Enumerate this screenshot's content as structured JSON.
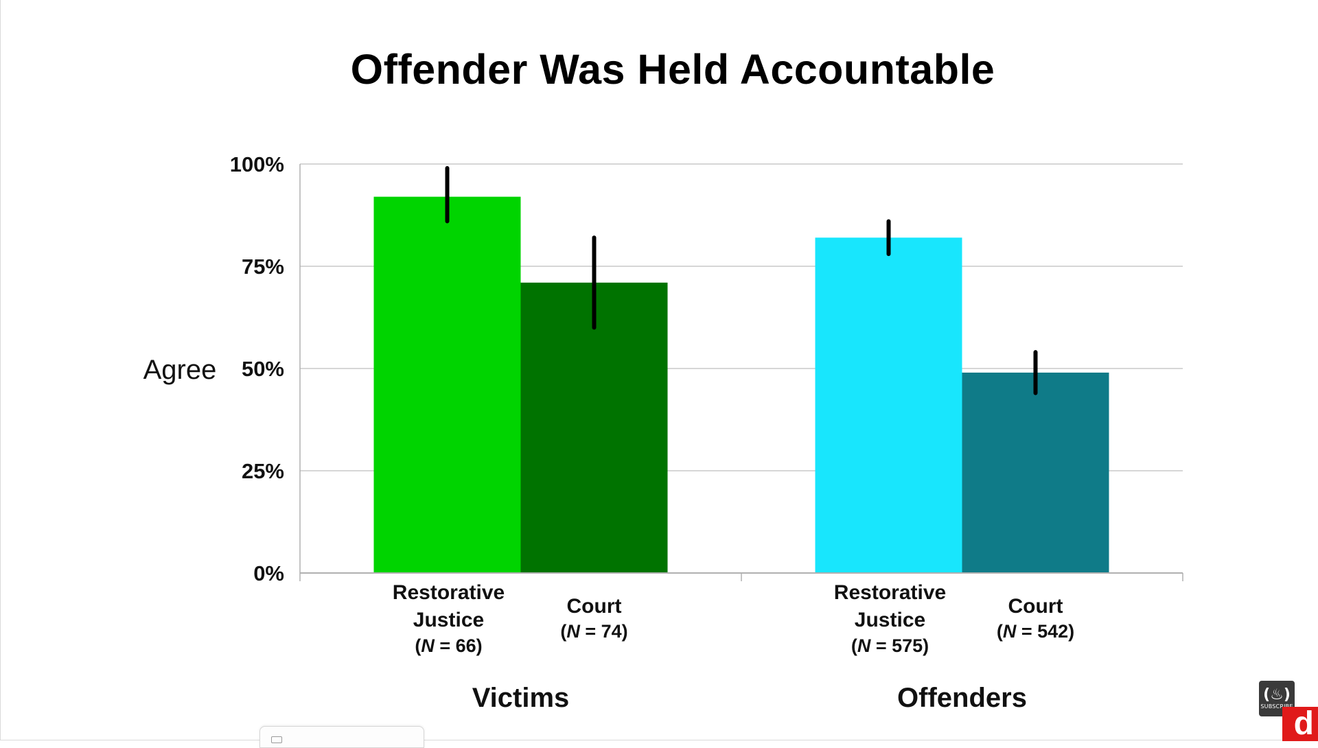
{
  "chart_data": {
    "type": "bar",
    "title": "Offender Was Held Accountable",
    "ylabel": "Agree",
    "ylim": [
      0,
      100
    ],
    "yticks": [
      "0%",
      "25%",
      "50%",
      "75%",
      "100%"
    ],
    "groups": [
      {
        "name": "Victims",
        "bars": [
          {
            "label": [
              "Restorative",
              "Justice"
            ],
            "n": "N",
            "n_value": "= 66",
            "value": 92,
            "err_low": 86,
            "err_high": 99,
            "color": "#00d400"
          },
          {
            "label": [
              "Court"
            ],
            "n": "N",
            "n_value": "= 74",
            "value": 71,
            "err_low": 60,
            "err_high": 82,
            "color": "#007300"
          }
        ]
      },
      {
        "name": "Offenders",
        "bars": [
          {
            "label": [
              "Restorative",
              "Justice"
            ],
            "n": "N",
            "n_value": "= 575",
            "value": 82,
            "err_low": 78,
            "err_high": 86,
            "color": "#18e6fd"
          },
          {
            "label": [
              "Court"
            ],
            "n": "N",
            "n_value": "= 542",
            "value": 49,
            "err_low": 44,
            "err_high": 54,
            "color": "#0f7b88"
          }
        ]
      }
    ],
    "grid": true
  },
  "branding": {
    "channel_logo_icon": "freecodecamp-flame-icon",
    "channel_logo_text": "SUBSCRIBE",
    "badge_letter": "d"
  }
}
